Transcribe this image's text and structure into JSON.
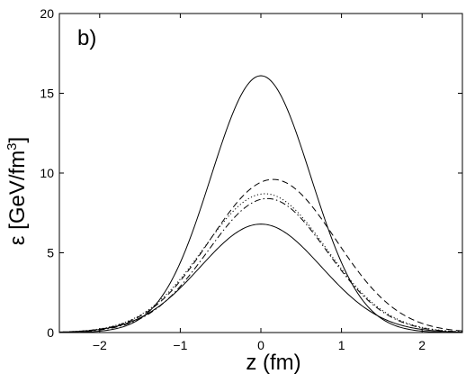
{
  "chart_data": {
    "type": "line",
    "panel_label": "b)",
    "xlabel": "z (fm)",
    "ylabel": "ε [GeV/fm³]",
    "ylabel_main": "ε [GeV/fm",
    "ylabel_sup": "3",
    "ylabel_close": "]",
    "xlim": [
      -2.5,
      2.5
    ],
    "ylim": [
      0,
      20
    ],
    "x_ticks": [
      -2,
      -1,
      0,
      1,
      2
    ],
    "x_tick_labels": [
      "−2",
      "−1",
      "0",
      "1",
      "2"
    ],
    "y_ticks": [
      0,
      5,
      10,
      15,
      20
    ],
    "y_tick_labels": [
      "0",
      "5",
      "10",
      "15",
      "20"
    ],
    "grid": false,
    "series": [
      {
        "style": "solid",
        "peak": 16.1,
        "center": 0.0,
        "sigma": 0.62,
        "x": [
          -2.5,
          -2,
          -1.5,
          -1,
          -0.5,
          0,
          0.5,
          1,
          1.5,
          2,
          2.5
        ],
        "values": [
          0.02,
          0.1,
          0.84,
          4.2,
          10.2,
          16.1,
          10.2,
          4.2,
          0.84,
          0.1,
          0.02
        ]
      },
      {
        "style": "solid",
        "peak": 6.8,
        "center": 0.0,
        "sigma": 0.75,
        "x": [
          -2.5,
          -2,
          -1.5,
          -1,
          -0.5,
          0,
          0.5,
          1,
          1.5,
          2,
          2.5
        ],
        "values": [
          0.02,
          0.19,
          0.92,
          2.8,
          5.5,
          6.8,
          5.5,
          2.8,
          0.92,
          0.19,
          0.02
        ]
      },
      {
        "style": "dashed",
        "peak": 9.6,
        "center": 0.15,
        "sigma": 0.78,
        "x": [
          -2.5,
          -2,
          -1.5,
          -1,
          -0.5,
          0,
          0.5,
          1,
          1.5,
          2,
          2.5
        ],
        "values": [
          0.01,
          0.12,
          0.75,
          3.0,
          6.9,
          9.5,
          8.8,
          5.3,
          2.1,
          0.55,
          0.1
        ]
      },
      {
        "style": "dotted",
        "peak": 8.7,
        "center": 0.05,
        "sigma": 0.76,
        "x": [
          -2.5,
          -2,
          -1.5,
          -1,
          -0.5,
          0,
          0.5,
          1,
          1.5,
          2,
          2.5
        ],
        "values": [
          0.02,
          0.15,
          0.85,
          3.2,
          6.8,
          8.7,
          7.4,
          4.1,
          1.4,
          0.3,
          0.04
        ]
      },
      {
        "style": "dashdot",
        "peak": 8.4,
        "center": 0.08,
        "sigma": 0.74,
        "x": [
          -2.5,
          -2,
          -1.5,
          -1,
          -0.5,
          0,
          0.5,
          1,
          1.5,
          2,
          2.5
        ],
        "values": [
          0.01,
          0.12,
          0.72,
          2.9,
          6.4,
          8.4,
          7.3,
          4.0,
          1.3,
          0.26,
          0.03
        ]
      }
    ]
  }
}
